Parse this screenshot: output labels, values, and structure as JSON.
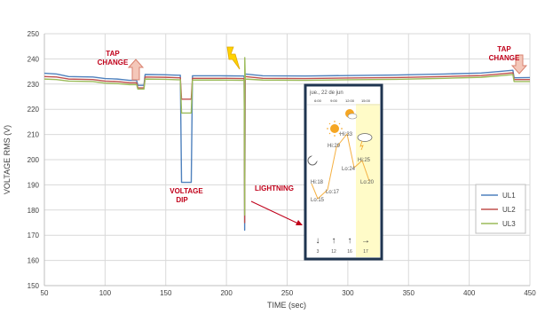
{
  "chart_data": {
    "type": "line",
    "title": "",
    "xlabel": "TIME (sec)",
    "ylabel": "VOLTAGE RMS (V)",
    "xlim": [
      50,
      450
    ],
    "ylim": [
      150,
      250
    ],
    "xticks": [
      50,
      100,
      150,
      200,
      250,
      300,
      350,
      400,
      450
    ],
    "yticks": [
      150,
      160,
      170,
      180,
      190,
      200,
      210,
      220,
      230,
      240,
      250
    ],
    "grid": true,
    "legend": "right",
    "series": [
      {
        "name": "UL1",
        "color": "#4f81bd",
        "points": [
          [
            50,
            234.3
          ],
          [
            60,
            234
          ],
          [
            70,
            233
          ],
          [
            90,
            232.8
          ],
          [
            100,
            232.2
          ],
          [
            110,
            232
          ],
          [
            120,
            231.5
          ],
          [
            126,
            231.5
          ],
          [
            127,
            229.5
          ],
          [
            132,
            229.5
          ],
          [
            133,
            233.8
          ],
          [
            150,
            233.7
          ],
          [
            160,
            233.5
          ],
          [
            162,
            233.5
          ],
          [
            163,
            191
          ],
          [
            171,
            191
          ],
          [
            172,
            233.3
          ],
          [
            195,
            233.3
          ],
          [
            214.6,
            233.2
          ],
          [
            215,
            172
          ],
          [
            215.4,
            234
          ],
          [
            230,
            233.3
          ],
          [
            265,
            233.2
          ],
          [
            300,
            233.4
          ],
          [
            340,
            233.6
          ],
          [
            380,
            234
          ],
          [
            410,
            234.4
          ],
          [
            425,
            235
          ],
          [
            436,
            235.5
          ],
          [
            437,
            232.5
          ],
          [
            450,
            232.6
          ]
        ]
      },
      {
        "name": "UL2",
        "color": "#c0504d",
        "points": [
          [
            50,
            233
          ],
          [
            60,
            232.8
          ],
          [
            70,
            232
          ],
          [
            90,
            231.8
          ],
          [
            100,
            231.2
          ],
          [
            110,
            231
          ],
          [
            120,
            230.5
          ],
          [
            126,
            230.5
          ],
          [
            127,
            228.5
          ],
          [
            132,
            228.5
          ],
          [
            133,
            232.8
          ],
          [
            150,
            232.7
          ],
          [
            160,
            232.5
          ],
          [
            162,
            232.5
          ],
          [
            163,
            224
          ],
          [
            171,
            224
          ],
          [
            172,
            232.3
          ],
          [
            195,
            232.3
          ],
          [
            214.6,
            232.2
          ],
          [
            215,
            175
          ],
          [
            215.4,
            233
          ],
          [
            230,
            232.3
          ],
          [
            265,
            232.2
          ],
          [
            300,
            232.4
          ],
          [
            340,
            232.6
          ],
          [
            380,
            233
          ],
          [
            410,
            233.4
          ],
          [
            425,
            234
          ],
          [
            436,
            234.5
          ],
          [
            437,
            231.8
          ],
          [
            450,
            231.8
          ]
        ]
      },
      {
        "name": "UL3",
        "color": "#9bbb59",
        "points": [
          [
            50,
            232
          ],
          [
            60,
            231.8
          ],
          [
            70,
            231.2
          ],
          [
            90,
            231
          ],
          [
            100,
            230.4
          ],
          [
            110,
            230.2
          ],
          [
            120,
            229.8
          ],
          [
            126,
            229.8
          ],
          [
            127,
            228
          ],
          [
            132,
            228
          ],
          [
            133,
            232
          ],
          [
            150,
            231.9
          ],
          [
            160,
            231.7
          ],
          [
            162,
            231.7
          ],
          [
            163,
            218.5
          ],
          [
            171,
            218.5
          ],
          [
            172,
            231.6
          ],
          [
            195,
            231.6
          ],
          [
            214.6,
            231.5
          ],
          [
            215,
            178
          ],
          [
            215.1,
            240.5
          ],
          [
            215.5,
            232
          ],
          [
            230,
            231.6
          ],
          [
            265,
            231.5
          ],
          [
            300,
            231.7
          ],
          [
            340,
            231.9
          ],
          [
            380,
            232.3
          ],
          [
            410,
            232.7
          ],
          [
            425,
            233.3
          ],
          [
            436,
            233.8
          ],
          [
            437,
            231
          ],
          [
            450,
            231
          ]
        ]
      }
    ],
    "annotations": {
      "tap_change_1": "TAP\nCHANGE",
      "tap_change_2": "TAP\nCHANGE",
      "voltage_dip": "VOLTAGE\nDIP",
      "lightning": "LIGHTNING"
    },
    "inset": {
      "date": "jue., 22 de jun",
      "times": [
        "6:00",
        "9:00",
        "12:00",
        "15:00"
      ],
      "labels": [
        "Hi:18",
        "Lo:15",
        "Lo:17",
        "Hi:29",
        "Hi:33",
        "Lo:24",
        "Hi:25",
        "Lo:20"
      ],
      "winds": [
        "3",
        "12",
        "16",
        "17"
      ]
    },
    "colors": {
      "annotation": "#c0001a",
      "arrow_fill": "#f4c7b9",
      "lightning": "#ffd200",
      "inset_border": "#1f3550",
      "highlight": "#fffbc8"
    }
  }
}
